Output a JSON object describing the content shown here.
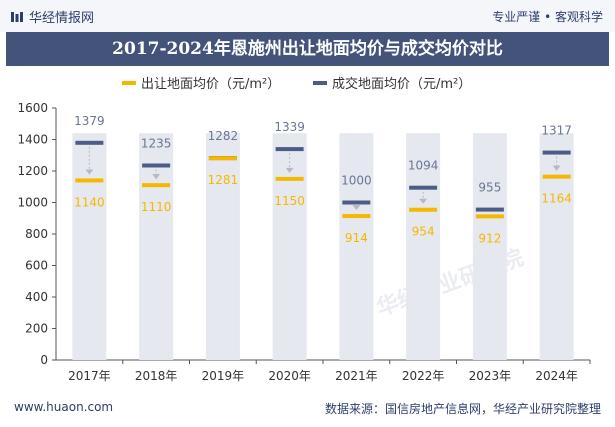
{
  "header": {
    "brand": "华经情报网",
    "tagline": "专业严谨 • 客观科学"
  },
  "title": "2017-2024年恩施州出让地面均价与成交均价对比",
  "footer": {
    "website": "www.huaon.com",
    "source": "数据来源：国信房地产信息网，华经产业研究院整理"
  },
  "watermark": "华经产业研究院",
  "colors": {
    "series_a": "#f5b800",
    "series_b": "#4c5c84",
    "bar": "#e5e8ef",
    "label_a": "#f5b800",
    "label_b": "#6a7694"
  },
  "chart_data": {
    "type": "bar",
    "title": "2017-2024年恩施州出让地面均价与成交均价对比",
    "categories": [
      "2017年",
      "2018年",
      "2019年",
      "2020年",
      "2021年",
      "2022年",
      "2023年",
      "2024年"
    ],
    "series": [
      {
        "name": "出让地面均价（元/m²）",
        "values": [
          1140,
          1110,
          1281,
          1150,
          914,
          954,
          912,
          1164
        ]
      },
      {
        "name": "成交地面均价（元/m²）",
        "values": [
          1379,
          1235,
          1282,
          1339,
          1000,
          1094,
          955,
          1317
        ]
      }
    ],
    "ylim": [
      0,
      1600
    ],
    "yticks": [
      0,
      200,
      400,
      600,
      800,
      1000,
      1200,
      1400,
      1600
    ],
    "xlabel": "",
    "ylabel": "",
    "legend_position": "top-center"
  }
}
